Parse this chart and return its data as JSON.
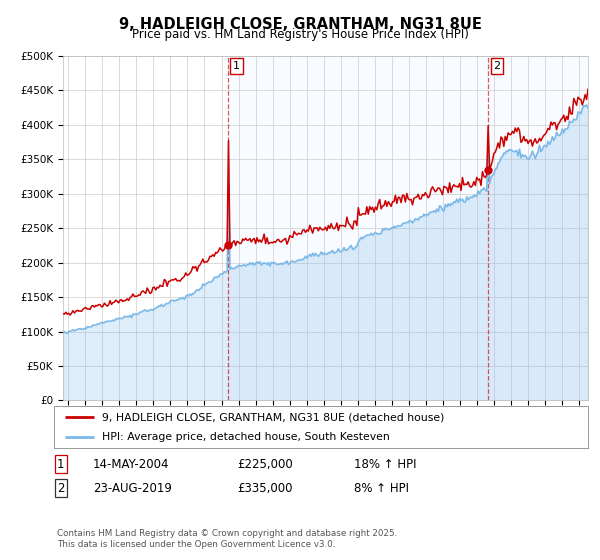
{
  "title": "9, HADLEIGH CLOSE, GRANTHAM, NG31 8UE",
  "subtitle": "Price paid vs. HM Land Registry's House Price Index (HPI)",
  "hpi_color": "#7ab8e8",
  "price_color": "#cc0000",
  "background_color": "#ffffff",
  "grid_color": "#cccccc",
  "shade_color": "#ddeeff",
  "ylim": [
    0,
    500000
  ],
  "yticks": [
    0,
    50000,
    100000,
    150000,
    200000,
    250000,
    300000,
    350000,
    400000,
    450000,
    500000
  ],
  "xlim_start": 1994.7,
  "xlim_end": 2025.5,
  "purchase1": {
    "date_num": 2004.37,
    "price": 225000,
    "label": "1"
  },
  "purchase2": {
    "date_num": 2019.65,
    "price": 335000,
    "label": "2"
  },
  "annotation1": {
    "date": "14-MAY-2004",
    "price": "£225,000",
    "hpi_pct": "18% ↑ HPI"
  },
  "annotation2": {
    "date": "23-AUG-2019",
    "price": "£335,000",
    "hpi_pct": "8% ↑ HPI"
  },
  "legend_line1": "9, HADLEIGH CLOSE, GRANTHAM, NG31 8UE (detached house)",
  "legend_line2": "HPI: Average price, detached house, South Kesteven",
  "footer": "Contains HM Land Registry data © Crown copyright and database right 2025.\nThis data is licensed under the Open Government Licence v3.0."
}
